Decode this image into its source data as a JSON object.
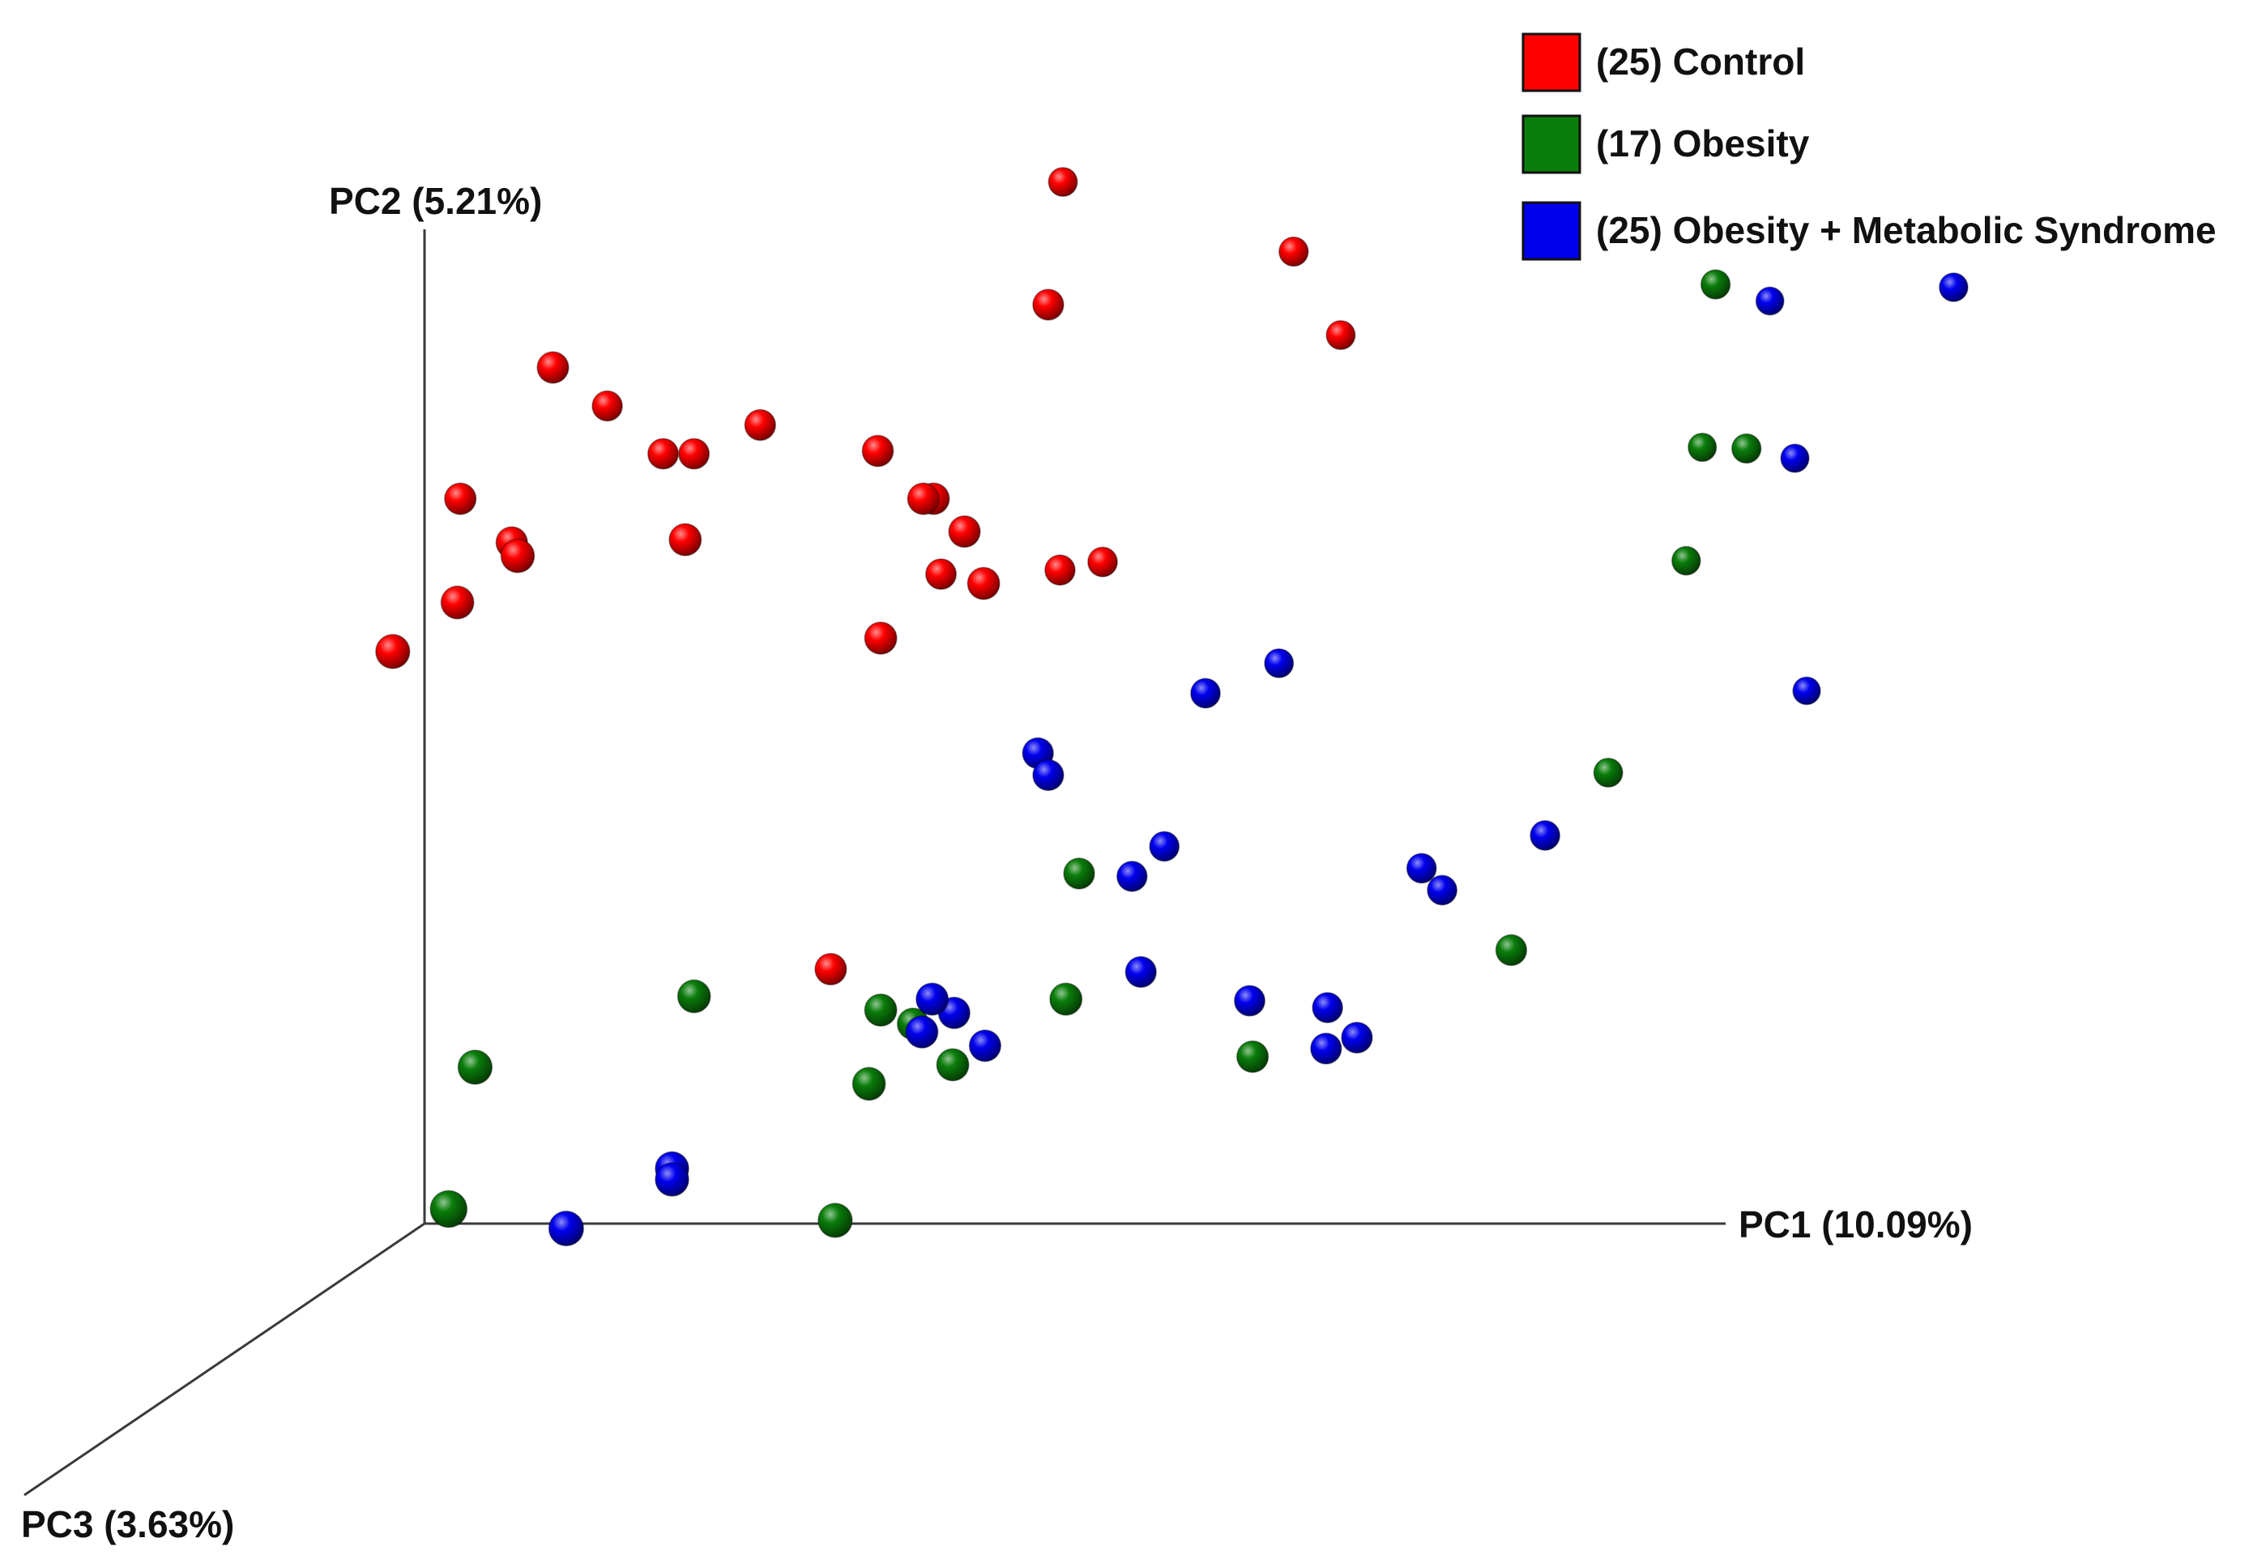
{
  "chart_data": {
    "type": "scatter",
    "subtype": "3d-pcoa",
    "title": "",
    "axes": {
      "x": {
        "label": "PC1 (10.09%)"
      },
      "y": {
        "label": "PC2 (5.21%)"
      },
      "z": {
        "label": "PC3 (3.63%)"
      }
    },
    "grid": false,
    "legend_position": "top-right",
    "series": [
      {
        "name": "(25) Control",
        "color": "#ff0000",
        "points": [
          [
            -0.4,
            0.79,
            0.1
          ],
          [
            -0.37,
            0.74,
            -0.1
          ],
          [
            -0.31,
            0.7,
            -0.05
          ],
          [
            -0.28,
            0.7,
            -0.05
          ],
          [
            -0.21,
            0.73,
            0.0
          ],
          [
            -0.44,
            0.63,
            0.1
          ],
          [
            -0.49,
            0.67,
            0.1
          ],
          [
            -0.47,
            0.59,
            0.3
          ],
          [
            -0.4,
            0.64,
            0.4
          ],
          [
            -0.26,
            0.64,
            0.2
          ],
          [
            -0.51,
            0.56,
            0.5
          ],
          [
            -0.09,
            0.71,
            0.05
          ],
          [
            -0.03,
            0.67,
            0.1
          ],
          [
            -0.04,
            0.67,
            0.1
          ],
          [
            0.0,
            0.64,
            0.1
          ],
          [
            -0.04,
            0.59,
            -0.05
          ],
          [
            -0.07,
            0.55,
            0.2
          ],
          [
            0.07,
            0.84,
            0.0
          ],
          [
            0.03,
            0.6,
            0.2
          ],
          [
            0.07,
            0.59,
            -0.1
          ],
          [
            0.1,
            0.59,
            -0.2
          ],
          [
            0.05,
            0.93,
            -0.3
          ],
          [
            0.28,
            0.87,
            -0.25
          ],
          [
            0.32,
            0.79,
            -0.3
          ],
          [
            -0.13,
            0.24,
            0.1
          ]
        ]
      },
      {
        "name": "(17) Obesity",
        "color": "#0a7d0a",
        "points": [
          [
            -0.43,
            0.18,
            0.5
          ],
          [
            -0.24,
            0.23,
            0.3
          ],
          [
            -0.41,
            0.08,
            0.9
          ],
          [
            -0.08,
            0.04,
            0.5
          ],
          [
            -0.07,
            0.21,
            0.2
          ],
          [
            -0.05,
            0.19,
            0.1
          ],
          [
            -0.07,
            0.15,
            0.3
          ],
          [
            0.0,
            0.16,
            0.2
          ],
          [
            0.1,
            0.32,
            0.0
          ],
          [
            0.11,
            0.22,
            0.2
          ],
          [
            0.28,
            0.16,
            0.1
          ],
          [
            0.52,
            0.25,
            0.0
          ],
          [
            0.58,
            0.39,
            -0.3
          ],
          [
            0.65,
            0.58,
            -0.35
          ],
          [
            0.72,
            0.69,
            -0.25
          ],
          [
            0.66,
            0.68,
            -0.4
          ],
          [
            0.69,
            0.84,
            -0.25
          ]
        ]
      },
      {
        "name": "(25) Obesity + Metabolic Syndrome",
        "color": "#0000ee",
        "points": [
          [
            -0.33,
            0.04,
            0.6
          ],
          [
            -0.25,
            0.08,
            0.4
          ],
          [
            -0.25,
            0.07,
            0.4
          ],
          [
            -0.02,
            0.22,
            0.2
          ],
          [
            -0.01,
            0.2,
            0.1
          ],
          [
            -0.03,
            0.19,
            0.2
          ],
          [
            0.02,
            0.17,
            0.1
          ],
          [
            0.06,
            0.43,
            0.0
          ],
          [
            0.07,
            0.41,
            0.0
          ],
          [
            0.14,
            0.31,
            -0.1
          ],
          [
            0.16,
            0.23,
            0.0
          ],
          [
            0.16,
            0.33,
            -0.2
          ],
          [
            0.2,
            0.47,
            -0.2
          ],
          [
            0.26,
            0.49,
            -0.3
          ],
          [
            0.26,
            0.2,
            -0.05
          ],
          [
            0.33,
            0.19,
            -0.1
          ],
          [
            0.34,
            0.16,
            0.0
          ],
          [
            0.37,
            0.17,
            0.0
          ],
          [
            0.41,
            0.31,
            -0.2
          ],
          [
            0.43,
            0.29,
            -0.2
          ],
          [
            0.53,
            0.34,
            -0.2
          ],
          [
            0.75,
            0.45,
            -0.5
          ],
          [
            0.75,
            0.67,
            -0.4
          ],
          [
            0.72,
            0.81,
            -0.45
          ],
          [
            0.91,
            0.83,
            -0.35
          ]
        ]
      }
    ]
  }
}
